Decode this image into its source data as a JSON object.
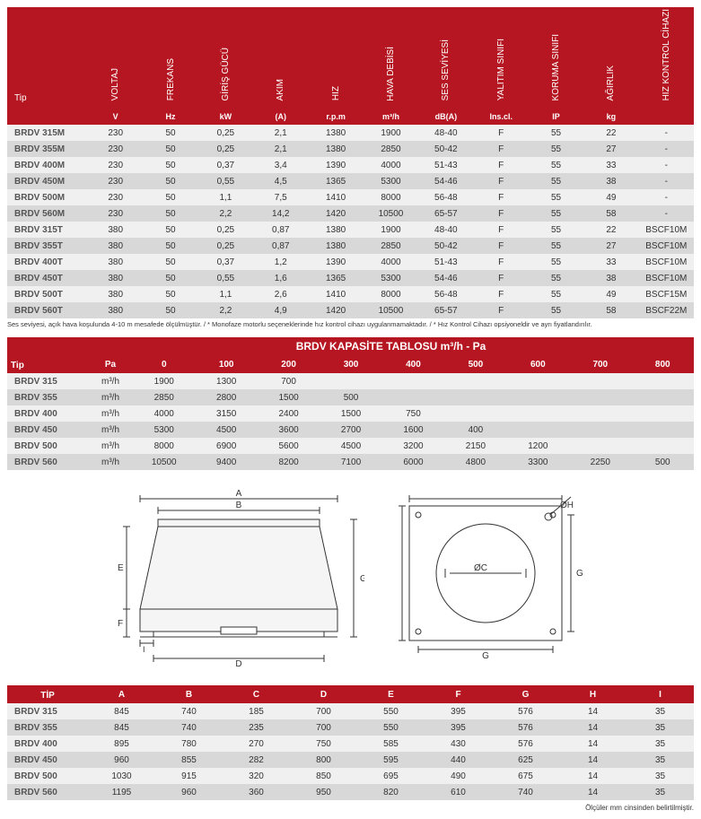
{
  "spec": {
    "headers": [
      "VOLTAJ",
      "FREKANS",
      "GİRİŞ GÜCÜ",
      "AKIM",
      "HIZ",
      "HAVA DEBİSİ",
      "SES SEVİYESİ",
      "YALITIM SINIFI",
      "KORUMA\nSINIFI",
      "AĞIRLIK",
      "HIZ KONTROL\nCİHAZI"
    ],
    "tip_label": "Tip",
    "units": [
      "V",
      "Hz",
      "kW",
      "(A)",
      "r.p.m",
      "m³/h",
      "dB(A)",
      "Ins.cl.",
      "IP",
      "kg",
      ""
    ],
    "rows": [
      [
        "BRDV 315M",
        "230",
        "50",
        "0,25",
        "2,1",
        "1380",
        "1900",
        "48-40",
        "F",
        "55",
        "22",
        "-"
      ],
      [
        "BRDV 355M",
        "230",
        "50",
        "0,25",
        "2,1",
        "1380",
        "2850",
        "50-42",
        "F",
        "55",
        "27",
        "-"
      ],
      [
        "BRDV 400M",
        "230",
        "50",
        "0,37",
        "3,4",
        "1390",
        "4000",
        "51-43",
        "F",
        "55",
        "33",
        "-"
      ],
      [
        "BRDV 450M",
        "230",
        "50",
        "0,55",
        "4,5",
        "1365",
        "5300",
        "54-46",
        "F",
        "55",
        "38",
        "-"
      ],
      [
        "BRDV 500M",
        "230",
        "50",
        "1,1",
        "7,5",
        "1410",
        "8000",
        "56-48",
        "F",
        "55",
        "49",
        "-"
      ],
      [
        "BRDV 560M",
        "230",
        "50",
        "2,2",
        "14,2",
        "1420",
        "10500",
        "65-57",
        "F",
        "55",
        "58",
        "-"
      ],
      [
        "BRDV 315T",
        "380",
        "50",
        "0,25",
        "0,87",
        "1380",
        "1900",
        "48-40",
        "F",
        "55",
        "22",
        "BSCF10M"
      ],
      [
        "BRDV 355T",
        "380",
        "50",
        "0,25",
        "0,87",
        "1380",
        "2850",
        "50-42",
        "F",
        "55",
        "27",
        "BSCF10M"
      ],
      [
        "BRDV 400T",
        "380",
        "50",
        "0,37",
        "1,2",
        "1390",
        "4000",
        "51-43",
        "F",
        "55",
        "33",
        "BSCF10M"
      ],
      [
        "BRDV 450T",
        "380",
        "50",
        "0,55",
        "1,6",
        "1365",
        "5300",
        "54-46",
        "F",
        "55",
        "38",
        "BSCF10M"
      ],
      [
        "BRDV 500T",
        "380",
        "50",
        "1,1",
        "2,6",
        "1410",
        "8000",
        "56-48",
        "F",
        "55",
        "49",
        "BSCF15M"
      ],
      [
        "BRDV 560T",
        "380",
        "50",
        "2,2",
        "4,9",
        "1420",
        "10500",
        "65-57",
        "F",
        "55",
        "58",
        "BSCF22M"
      ]
    ],
    "footnote": "Ses seviyesi, açık hava koşulunda 4-10 m mesafede ölçülmüştür. / * Monofaze motorlu seçeneklerinde hız kontrol cihazı uygulanmamaktadır. / * Hız Kontrol Cihazı opsiyoneldir ve ayrı fiyatlandırılır."
  },
  "cap": {
    "title": "BRDV KAPASİTE TABLOSU m³/h - Pa",
    "tip_label": "Tip",
    "pa_label": "Pa",
    "pa_cols": [
      "0",
      "100",
      "200",
      "300",
      "400",
      "500",
      "600",
      "700",
      "800"
    ],
    "unit": "m³/h",
    "rows": [
      [
        "BRDV 315",
        "1900",
        "1300",
        "700",
        "",
        "",
        "",
        "",
        "",
        ""
      ],
      [
        "BRDV 355",
        "2850",
        "2800",
        "1500",
        "500",
        "",
        "",
        "",
        "",
        ""
      ],
      [
        "BRDV 400",
        "4000",
        "3150",
        "2400",
        "1500",
        "750",
        "",
        "",
        "",
        ""
      ],
      [
        "BRDV 450",
        "5300",
        "4500",
        "3600",
        "2700",
        "1600",
        "400",
        "",
        "",
        ""
      ],
      [
        "BRDV 500",
        "8000",
        "6900",
        "5600",
        "4500",
        "3200",
        "2150",
        "1200",
        "",
        ""
      ],
      [
        "BRDV 560",
        "10500",
        "9400",
        "8200",
        "7100",
        "6000",
        "4800",
        "3300",
        "2250",
        "500"
      ]
    ]
  },
  "dim": {
    "tip_label": "TİP",
    "cols": [
      "A",
      "B",
      "C",
      "D",
      "E",
      "F",
      "G",
      "H",
      "I"
    ],
    "rows": [
      [
        "BRDV 315",
        "845",
        "740",
        "185",
        "700",
        "550",
        "395",
        "576",
        "14",
        "35"
      ],
      [
        "BRDV 355",
        "845",
        "740",
        "235",
        "700",
        "550",
        "395",
        "576",
        "14",
        "35"
      ],
      [
        "BRDV 400",
        "895",
        "780",
        "270",
        "750",
        "585",
        "430",
        "576",
        "14",
        "35"
      ],
      [
        "BRDV 450",
        "960",
        "855",
        "282",
        "800",
        "595",
        "440",
        "625",
        "14",
        "35"
      ],
      [
        "BRDV 500",
        "1030",
        "915",
        "320",
        "850",
        "695",
        "490",
        "675",
        "14",
        "35"
      ],
      [
        "BRDV 560",
        "1195",
        "960",
        "360",
        "950",
        "820",
        "610",
        "740",
        "14",
        "35"
      ]
    ],
    "note": "Ölçüler mm cinsinden belirtilmiştir."
  }
}
